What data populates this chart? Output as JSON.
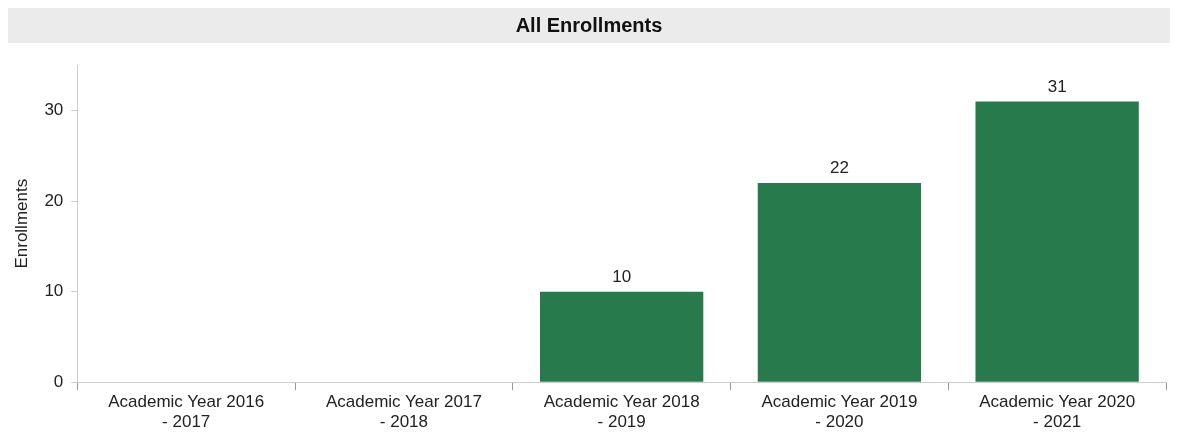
{
  "chart_data": {
    "type": "bar",
    "title": "All Enrollments",
    "ylabel": "Enrollments",
    "categories": [
      "Academic Year 2016 - 2017",
      "Academic Year 2017 - 2018",
      "Academic Year 2018 - 2019",
      "Academic Year 2019 - 2020",
      "Academic Year 2020 - 2021"
    ],
    "values": [
      null,
      null,
      10,
      22,
      31
    ],
    "color": "#277a4c",
    "ylim": [
      0,
      35
    ],
    "yticks": [
      0,
      10,
      20,
      30
    ],
    "grid": false,
    "legend": false,
    "data_labels": true
  }
}
